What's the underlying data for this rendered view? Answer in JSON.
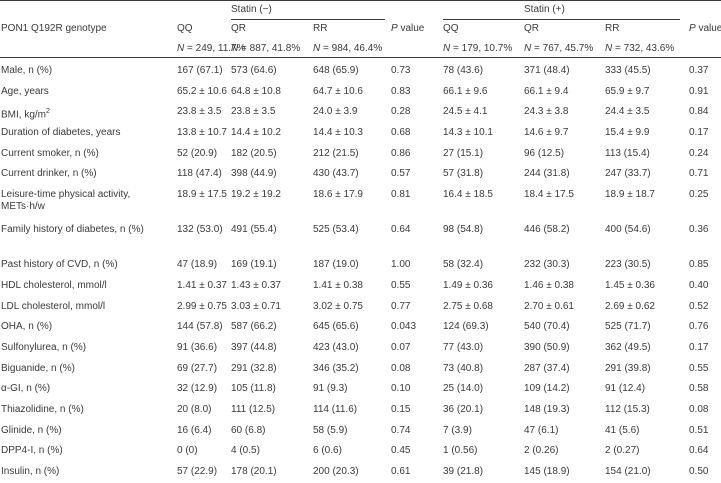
{
  "header": {
    "row_label": "PON1 Q192R genotype",
    "group1": "Statin (−)",
    "group2": "Statin (+)",
    "pvalue_p": "P",
    "pvalue_rest": " value",
    "sub": {
      "qq1": "QQ",
      "qr1": "QR",
      "rr1": "RR",
      "qq2": "QQ",
      "qr2": "QR",
      "rr2": "RR"
    },
    "counts": {
      "qq1_n": "N",
      "qq1_v": " = 249, 11.7%",
      "qr1_n": "N",
      "qr1_v": " = 887, 41.8%",
      "rr1_n": "N",
      "rr1_v": " = 984, 46.4%",
      "qq2_n": "N",
      "qq2_v": " = 179, 10.7%",
      "qr2_n": "N",
      "qr2_v": " = 767, 45.7%",
      "rr2_n": "N",
      "rr2_v": " = 732, 43.6%"
    }
  },
  "rows": [
    {
      "label": "Male, n (%)",
      "v": [
        "167 (67.1)",
        "573 (64.6)",
        "648 (65.9)",
        "0.73",
        "78 (43.6)",
        "371 (48.4)",
        "333 (45.5)",
        "0.37"
      ]
    },
    {
      "label": "Age, years",
      "v": [
        "65.2 ± 10.6",
        "64.8 ± 10.8",
        "64.7 ± 10.6",
        "0.83",
        "66.1 ± 9.6",
        "66.1 ± 9.4",
        "65.9 ± 9.7",
        "0.91"
      ]
    },
    {
      "label": "BMI, kg/m",
      "sup": "2",
      "v": [
        "23.8 ± 3.5",
        "23.8 ± 3.5",
        "24.0 ± 3.9",
        "0.28",
        "24.5 ± 4.1",
        "24.3 ± 3.8",
        "24.4 ± 3.5",
        "0.84"
      ]
    },
    {
      "label": "Duration of diabetes, years",
      "v": [
        "13.8 ± 10.7",
        "14.4 ± 10.2",
        "14.4 ± 10.3",
        "0.68",
        "14.3 ± 10.1",
        "14.6 ± 9.7",
        "15.4 ± 9.9",
        "0.17"
      ]
    },
    {
      "label": "Current smoker, n (%)",
      "v": [
        "52 (20.9)",
        "182 (20.5)",
        "212 (21.5)",
        "0.86",
        "27 (15.1)",
        "96 (12.5)",
        "113 (15.4)",
        "0.24"
      ]
    },
    {
      "label": "Current drinker, n (%)",
      "v": [
        "118 (47.4)",
        "398 (44.9)",
        "430 (43.7)",
        "0.57",
        "57 (31.8)",
        "244 (31.8)",
        "247 (33.7)",
        "0.71"
      ]
    },
    {
      "label": "Leisure-time physical activity, METs·h/w",
      "v": [
        "18.9 ± 17.5",
        "19.2 ± 19.2",
        "18.6 ± 17.9",
        "0.81",
        "16.4 ± 18.5",
        "18.4 ± 17.5",
        "18.9 ± 18.7",
        "0.25"
      ]
    },
    {
      "label": "Family history of diabetes, n (%)",
      "v": [
        "132 (53.0)",
        "491 (55.4)",
        "525 (53.4)",
        "0.64",
        "98 (54.8)",
        "446 (58.2)",
        "400 (54.6)",
        "0.36"
      ]
    },
    {
      "label": "Past history of CVD, n (%)",
      "v": [
        "47 (18.9)",
        "169 (19.1)",
        "187 (19.0)",
        "1.00",
        "58 (32.4)",
        "232 (30.3)",
        "223 (30.5)",
        "0.85"
      ]
    },
    {
      "label": "HDL cholesterol, mmol/l",
      "v": [
        "1.41 ± 0.37",
        "1.43 ± 0.37",
        "1.41 ± 0.38",
        "0.55",
        "1.49 ± 0.36",
        "1.46 ± 0.38",
        "1.45 ± 0.36",
        "0.40"
      ]
    },
    {
      "label": "LDL cholesterol, mmol/l",
      "v": [
        "2.99 ± 0.75",
        "3.03 ± 0.71",
        "3.02 ± 0.75",
        "0.77",
        "2.75 ± 0.68",
        "2.70 ± 0.61",
        "2.69 ± 0.62",
        "0.52"
      ]
    },
    {
      "label": "OHA, n (%)",
      "v": [
        "144 (57.8)",
        "587 (66.2)",
        "645 (65.6)",
        "0.043",
        "124 (69.3)",
        "540 (70.4)",
        "525 (71.7)",
        "0.76"
      ]
    },
    {
      "label": "Sulfonylurea, n (%)",
      "v": [
        "91 (36.6)",
        "397 (44.8)",
        "423 (43.0)",
        "0.07",
        "77 (43.0)",
        "390 (50.9)",
        "362 (49.5)",
        "0.17"
      ]
    },
    {
      "label": "Biguanide, n (%)",
      "v": [
        "69 (27.7)",
        "291 (32.8)",
        "346 (35.2)",
        "0.08",
        "73 (40.8)",
        "287 (37.4)",
        "291 (39.8)",
        "0.55"
      ]
    },
    {
      "label": "α-GI, n (%)",
      "v": [
        "32 (12.9)",
        "105 (11.8)",
        "91 (9.3)",
        "0.10",
        "25 (14.0)",
        "109 (14.2)",
        "91 (12.4)",
        "0.58"
      ]
    },
    {
      "label": "Thiazolidine, n (%)",
      "v": [
        "20 (8.0)",
        "111 (12.5)",
        "114 (11.6)",
        "0.15",
        "36 (20.1)",
        "148 (19.3)",
        "112 (15.3)",
        "0.08"
      ]
    },
    {
      "label": "Glinide, n (%)",
      "v": [
        "16 (6.4)",
        "60 (6.8)",
        "58 (5.9)",
        "0.74",
        "7 (3.9)",
        "47 (6.1)",
        "41 (5.6)",
        "0.51"
      ]
    },
    {
      "label": "DPP4-I, n (%)",
      "v": [
        "0 (0)",
        "4 (0.5)",
        "6 (0.6)",
        "0.45",
        "1 (0.56)",
        "2 (0.26)",
        "2 (0.27)",
        "0.64"
      ]
    },
    {
      "label": "Insulin, n (%)",
      "v": [
        "57 (22.9)",
        "178 (20.1)",
        "200 (20.3)",
        "0.61",
        "39 (21.8)",
        "145 (18.9)",
        "154 (21.0)",
        "0.50"
      ]
    }
  ]
}
